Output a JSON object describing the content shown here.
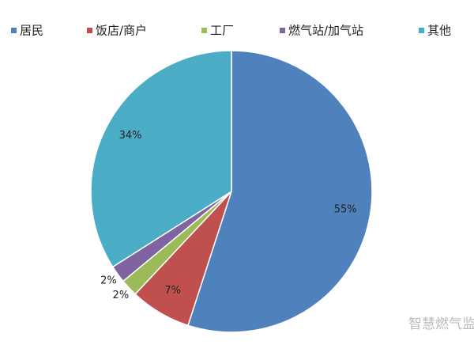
{
  "chart_data": {
    "type": "pie",
    "categories": [
      "居民",
      "饭店/商户",
      "工厂",
      "燃气站/加气站",
      "其他"
    ],
    "values": [
      55,
      7,
      2,
      2,
      34
    ],
    "value_labels": [
      "55%",
      "7%",
      "2%",
      "2%",
      "34%"
    ],
    "colors": [
      "#4f81bd",
      "#c0504d",
      "#9bbb59",
      "#8064a2",
      "#4bacc6"
    ],
    "legend": "top",
    "watermark": "智慧燃气监"
  }
}
